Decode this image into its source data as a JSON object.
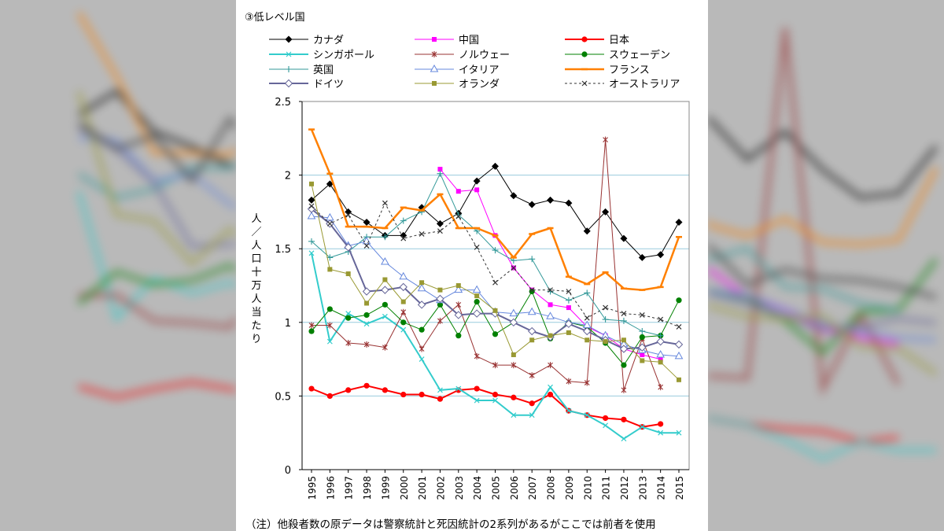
{
  "title": "③低レベル国",
  "ylabel": "人／人口十万人当たり",
  "note": "（注）他殺者数の原データは警察統計と死因統計の2系列があるがここでは前者を使用",
  "chart_data": {
    "type": "line",
    "title": "③低レベル国",
    "ylabel": "人／人口十万人当たり",
    "xlabel": "",
    "ylim": [
      0,
      2.5
    ],
    "yticks": [
      0,
      0.5,
      1,
      1.5,
      2,
      2.5
    ],
    "ytick_labels": [
      "0",
      "0.5",
      "1",
      "1.5",
      "2",
      "2.5"
    ],
    "grid": "horizontal",
    "legend": "top",
    "x": [
      "1995",
      "1996",
      "1997",
      "1998",
      "1999",
      "2000",
      "2001",
      "2002",
      "2003",
      "2004",
      "2005",
      "2006",
      "2007",
      "2008",
      "2009",
      "2010",
      "2011",
      "2012",
      "2013",
      "2014",
      "2015"
    ],
    "series": [
      {
        "name": "カナダ",
        "color": "#000000",
        "marker": "diamond-filled",
        "dash": "solid",
        "width": 1,
        "values": [
          1.83,
          1.94,
          1.75,
          1.68,
          1.59,
          1.59,
          1.78,
          1.67,
          1.74,
          1.96,
          2.06,
          1.86,
          1.8,
          1.83,
          1.81,
          1.62,
          1.75,
          1.57,
          1.44,
          1.46,
          1.68
        ]
      },
      {
        "name": "中国",
        "color": "#ff00ff",
        "marker": "square-filled",
        "dash": "solid",
        "width": 1,
        "values": [
          null,
          null,
          null,
          null,
          null,
          null,
          null,
          2.04,
          1.89,
          1.9,
          1.59,
          1.37,
          1.22,
          1.12,
          1.1,
          0.97,
          0.91,
          0.82,
          0.78,
          0.75,
          null
        ]
      },
      {
        "name": "日本",
        "color": "#ff0000",
        "marker": "circle-filled",
        "dash": "solid",
        "width": 2,
        "values": [
          0.55,
          0.5,
          0.54,
          0.57,
          0.54,
          0.51,
          0.51,
          0.48,
          0.54,
          0.55,
          0.51,
          0.49,
          0.45,
          0.51,
          0.4,
          0.37,
          0.35,
          0.34,
          0.29,
          0.31,
          null
        ]
      },
      {
        "name": "シンガポール",
        "color": "#33cccc",
        "marker": "x",
        "dash": "solid",
        "width": 2,
        "values": [
          1.47,
          0.87,
          1.06,
          0.99,
          1.04,
          0.95,
          0.75,
          0.54,
          0.55,
          0.47,
          0.47,
          0.37,
          0.37,
          0.56,
          0.4,
          0.37,
          0.3,
          0.21,
          0.29,
          0.25,
          0.25
        ]
      },
      {
        "name": "ノルウェー",
        "color": "#993333",
        "marker": "star",
        "dash": "solid",
        "width": 1,
        "values": [
          0.98,
          0.98,
          0.86,
          0.85,
          0.83,
          1.07,
          0.82,
          1.01,
          1.12,
          0.77,
          0.71,
          0.71,
          0.64,
          0.71,
          0.6,
          0.59,
          2.24,
          0.54,
          0.89,
          0.56,
          null
        ]
      },
      {
        "name": "スウェーデン",
        "color": "#008000",
        "marker": "circle-filled",
        "dash": "solid",
        "width": 1,
        "values": [
          0.94,
          1.09,
          1.03,
          1.05,
          1.12,
          1.0,
          0.95,
          1.12,
          0.91,
          1.14,
          0.92,
          1.0,
          1.21,
          0.89,
          1.0,
          0.97,
          0.86,
          0.71,
          0.9,
          0.91,
          1.15
        ]
      },
      {
        "name": "英国",
        "color": "#339999",
        "marker": "plus",
        "dash": "solid",
        "width": 1,
        "values": [
          1.55,
          1.44,
          1.48,
          1.58,
          1.58,
          1.69,
          1.75,
          2.01,
          1.73,
          1.62,
          1.49,
          1.42,
          1.43,
          1.21,
          1.15,
          1.2,
          1.02,
          1.01,
          0.94,
          0.91,
          null
        ]
      },
      {
        "name": "イタリア",
        "color": "#6688dd",
        "marker": "triangle-open",
        "dash": "solid",
        "width": 1,
        "values": [
          1.72,
          1.71,
          1.52,
          1.55,
          1.41,
          1.31,
          1.23,
          1.15,
          1.22,
          1.22,
          1.07,
          1.06,
          1.07,
          1.04,
          1.0,
          0.98,
          0.91,
          0.85,
          0.81,
          0.78,
          0.77
        ]
      },
      {
        "name": "フランス",
        "color": "#ff8000",
        "marker": "dash",
        "dash": "solid",
        "width": 2.5,
        "values": [
          2.31,
          2.01,
          1.65,
          1.65,
          1.64,
          1.78,
          1.76,
          1.87,
          1.64,
          1.64,
          1.59,
          1.44,
          1.6,
          1.64,
          1.31,
          1.26,
          1.34,
          1.23,
          1.22,
          1.24,
          1.58
        ]
      },
      {
        "name": "ドイツ",
        "color": "#666699",
        "marker": "diamond-open",
        "dash": "solid",
        "width": 2,
        "values": [
          1.77,
          1.67,
          1.51,
          1.21,
          1.22,
          1.24,
          1.12,
          1.16,
          1.05,
          1.06,
          1.06,
          1.0,
          0.94,
          0.9,
          0.99,
          0.94,
          0.88,
          0.82,
          0.83,
          0.87,
          0.85
        ]
      },
      {
        "name": "オランダ",
        "color": "#999933",
        "marker": "square-filled",
        "dash": "solid",
        "width": 1,
        "values": [
          1.94,
          1.36,
          1.33,
          1.13,
          1.29,
          1.14,
          1.27,
          1.22,
          1.25,
          1.18,
          1.08,
          0.78,
          0.88,
          0.91,
          0.93,
          0.88,
          0.87,
          0.88,
          0.74,
          0.73,
          0.61
        ]
      },
      {
        "name": "オーストラリア",
        "color": "#333333",
        "marker": "x",
        "dash": "dotted",
        "width": 1,
        "values": [
          1.79,
          1.67,
          1.73,
          1.52,
          1.81,
          1.57,
          1.6,
          1.62,
          1.72,
          1.51,
          1.27,
          1.37,
          1.22,
          1.22,
          1.21,
          1.03,
          1.1,
          1.06,
          1.05,
          1.02,
          0.97
        ]
      }
    ]
  }
}
